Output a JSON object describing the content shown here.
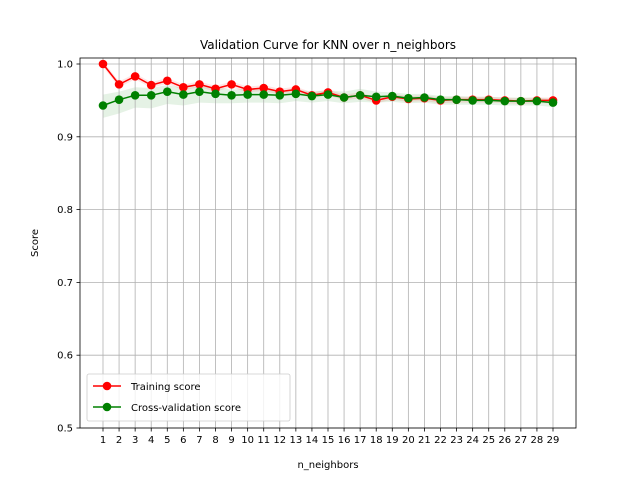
{
  "chart_data": {
    "type": "line",
    "title": "Validation Curve for KNN over n_neighbors",
    "xlabel": "n_neighbors",
    "ylabel": "Score",
    "x": [
      1,
      2,
      3,
      4,
      5,
      6,
      7,
      8,
      9,
      10,
      11,
      12,
      13,
      14,
      15,
      16,
      17,
      18,
      19,
      20,
      21,
      22,
      23,
      24,
      25,
      26,
      27,
      28,
      29
    ],
    "xlim": [
      0,
      30
    ],
    "ylim": [
      0.5,
      1.0
    ],
    "yticks": [
      0.5,
      0.6,
      0.7,
      0.8,
      0.9,
      1.0
    ],
    "ytick_labels": [
      "0.5",
      "0.6",
      "0.7",
      "0.8",
      "0.9",
      "1.0"
    ],
    "grid": true,
    "legend_position": "lower-left",
    "series": [
      {
        "name": "Training score",
        "color": "#ff0000",
        "values": [
          1.0,
          0.972,
          0.983,
          0.971,
          0.977,
          0.968,
          0.972,
          0.966,
          0.972,
          0.965,
          0.967,
          0.962,
          0.965,
          0.957,
          0.961,
          0.954,
          0.957,
          0.95,
          0.955,
          0.952,
          0.953,
          0.95,
          0.951,
          0.951,
          0.951,
          0.95,
          0.949,
          0.95,
          0.95
        ],
        "band": 0.004
      },
      {
        "name": "Cross-validation score",
        "color": "#008000",
        "values": [
          0.943,
          0.951,
          0.957,
          0.957,
          0.962,
          0.958,
          0.962,
          0.959,
          0.957,
          0.958,
          0.958,
          0.957,
          0.959,
          0.956,
          0.958,
          0.954,
          0.957,
          0.955,
          0.956,
          0.953,
          0.954,
          0.951,
          0.951,
          0.95,
          0.95,
          0.949,
          0.949,
          0.949,
          0.947
        ],
        "band_upper": [
          0.958,
          0.962,
          0.968,
          0.967,
          0.971,
          0.967,
          0.969,
          0.968,
          0.965,
          0.966,
          0.967,
          0.963,
          0.965,
          0.962,
          0.964,
          0.962,
          0.966,
          0.962,
          0.961,
          0.959,
          0.959,
          0.956,
          0.956,
          0.955,
          0.955,
          0.954,
          0.954,
          0.954,
          0.952
        ],
        "band_lower": [
          0.926,
          0.932,
          0.94,
          0.939,
          0.945,
          0.943,
          0.947,
          0.946,
          0.946,
          0.947,
          0.947,
          0.946,
          0.949,
          0.947,
          0.949,
          0.946,
          0.948,
          0.947,
          0.948,
          0.946,
          0.947,
          0.944,
          0.944,
          0.944,
          0.944,
          0.943,
          0.943,
          0.943,
          0.941
        ]
      }
    ]
  }
}
